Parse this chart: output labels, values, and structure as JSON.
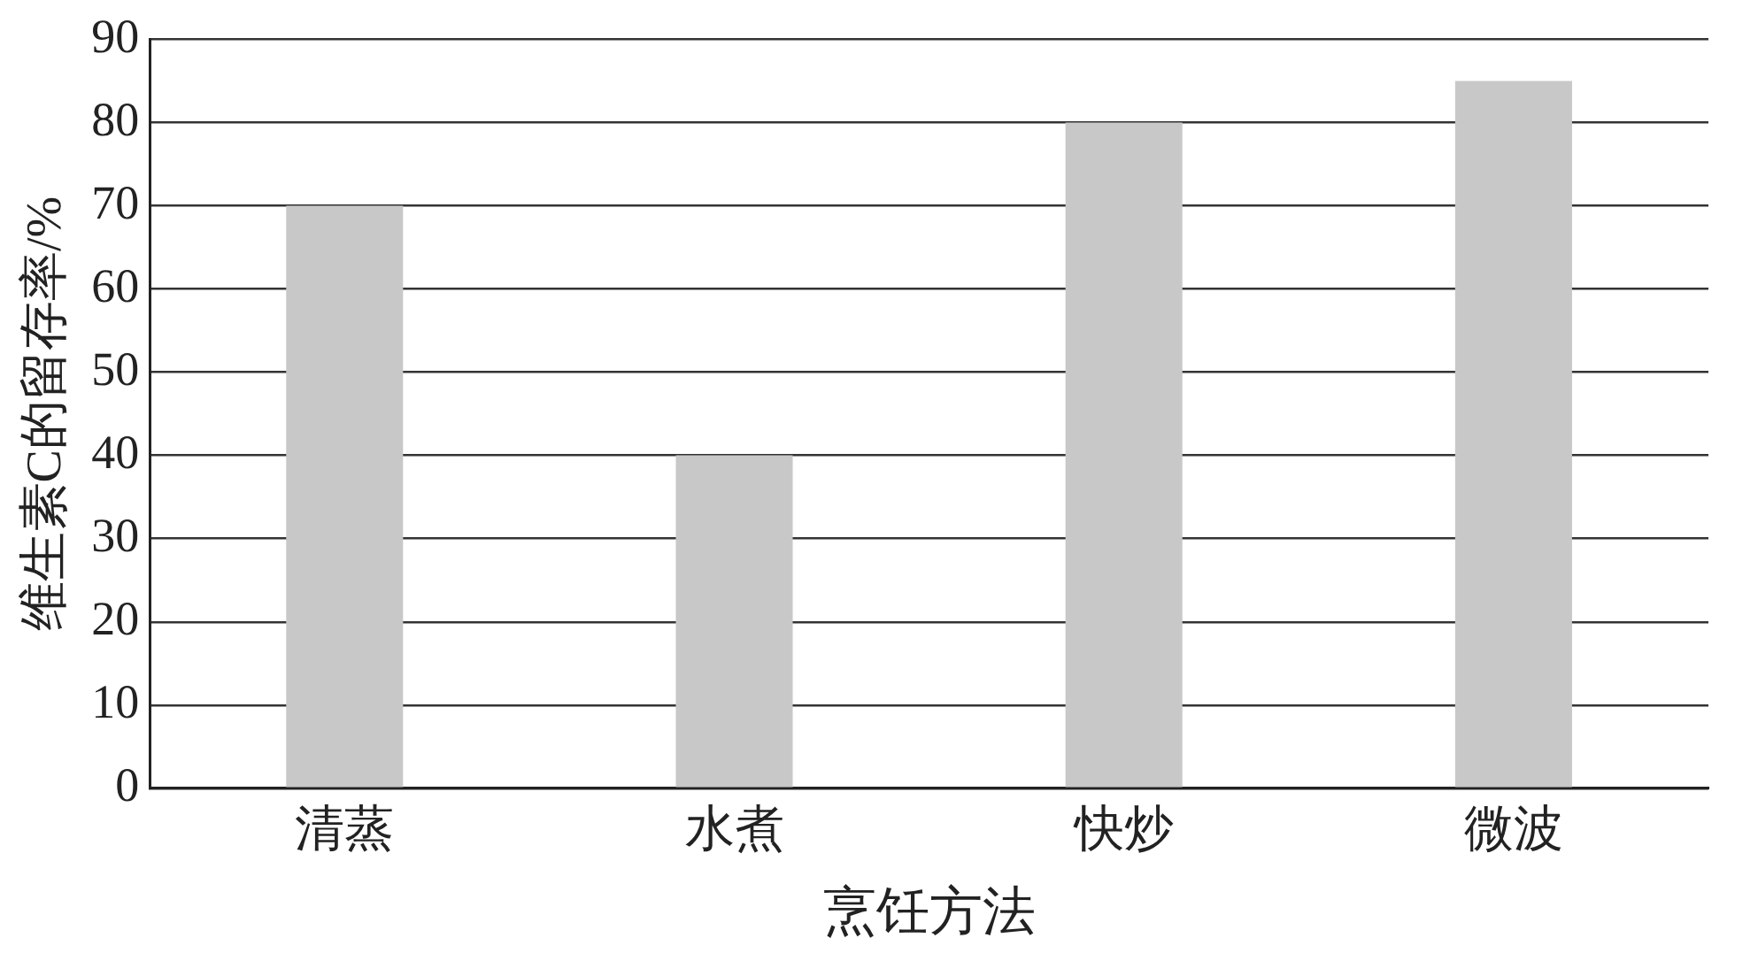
{
  "chart_data": {
    "type": "bar",
    "xlabel": "烹饪方法",
    "ylabel": "维生素C的留存率/%",
    "categories": [
      "清蒸",
      "水煮",
      "快炒",
      "微波"
    ],
    "values": [
      70,
      40,
      80,
      85
    ],
    "color": "#c8c8c8",
    "ylim": [
      0,
      90
    ],
    "yticks": [
      0,
      10,
      20,
      30,
      40,
      50,
      60,
      70,
      80,
      90
    ],
    "grid": "y",
    "legend": false
  }
}
